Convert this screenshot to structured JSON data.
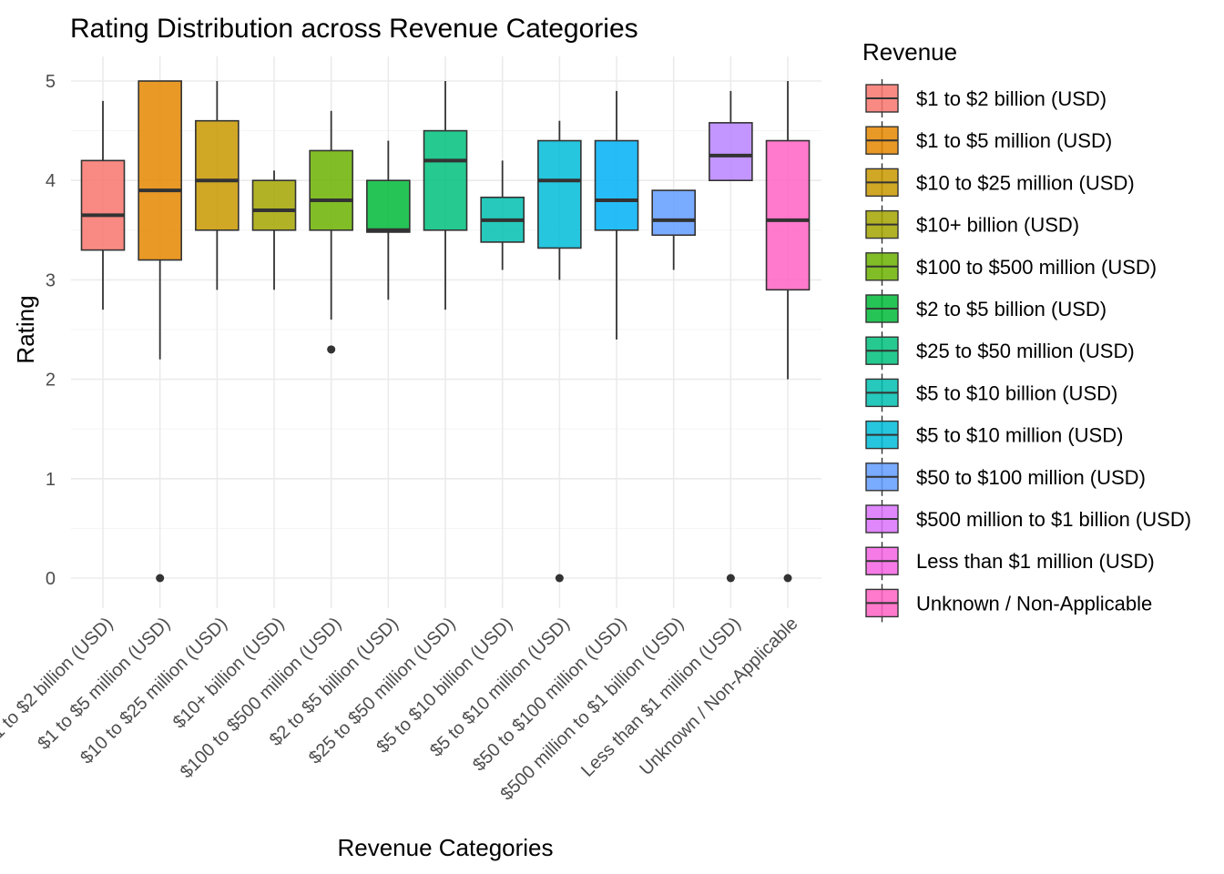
{
  "chart_data": {
    "type": "boxplot",
    "title": "Rating Distribution across Revenue Categories",
    "xlabel": "Revenue Categories",
    "ylabel": "Rating",
    "ylim": [
      -0.25,
      5.15
    ],
    "yticks": [
      0,
      1,
      2,
      3,
      4,
      5
    ],
    "grid": true,
    "legend": {
      "title": "Revenue",
      "placement": "right"
    },
    "categories": [
      "$1 to $2 billion (USD)",
      "$1 to $5 million (USD)",
      "$10 to $25 million (USD)",
      "$10+ billion (USD)",
      "$100 to $500 million (USD)",
      "$2 to $5 billion (USD)",
      "$25 to $50 million (USD)",
      "$5 to $10 billion (USD)",
      "$5 to $10 million (USD)",
      "$50 to $100 million (USD)",
      "$500 million to $1 billion (USD)",
      "Less than $1 million (USD)",
      "Unknown / Non-Applicable"
    ],
    "boxes": [
      {
        "min": 2.7,
        "q1": 3.3,
        "median": 3.65,
        "q3": 4.2,
        "max": 4.8,
        "outliers": [],
        "color": "#F8766D"
      },
      {
        "min": 2.2,
        "q1": 3.2,
        "median": 3.9,
        "q3": 5.0,
        "max": 5.0,
        "outliers": [
          0
        ],
        "color": "#E58700"
      },
      {
        "min": 2.9,
        "q1": 3.5,
        "median": 4.0,
        "q3": 4.6,
        "max": 5.0,
        "outliers": [],
        "color": "#C99800"
      },
      {
        "min": 2.9,
        "q1": 3.5,
        "median": 3.7,
        "q3": 4.0,
        "max": 4.1,
        "outliers": [],
        "color": "#A3A500"
      },
      {
        "min": 2.6,
        "q1": 3.5,
        "median": 3.8,
        "q3": 4.3,
        "max": 4.7,
        "outliers": [
          2.3
        ],
        "color": "#6BB100"
      },
      {
        "min": 2.8,
        "q1": 3.48,
        "median": 3.5,
        "q3": 4.0,
        "max": 4.4,
        "outliers": [],
        "color": "#00BA38"
      },
      {
        "min": 2.7,
        "q1": 3.5,
        "median": 4.2,
        "q3": 4.5,
        "max": 5.0,
        "outliers": [],
        "color": "#00BF7D"
      },
      {
        "min": 3.1,
        "q1": 3.38,
        "median": 3.6,
        "q3": 3.83,
        "max": 4.2,
        "outliers": [],
        "color": "#00C0AF"
      },
      {
        "min": 3.0,
        "q1": 3.32,
        "median": 4.0,
        "q3": 4.4,
        "max": 4.6,
        "outliers": [
          0
        ],
        "color": "#00BCD8"
      },
      {
        "min": 2.4,
        "q1": 3.5,
        "median": 3.8,
        "q3": 4.4,
        "max": 4.9,
        "outliers": [],
        "color": "#00B0F6"
      },
      {
        "min": 3.1,
        "q1": 3.45,
        "median": 3.6,
        "q3": 3.9,
        "max": 3.9,
        "outliers": [],
        "color": "#619CFF"
      },
      {
        "min": 4.0,
        "q1": 4.0,
        "median": 4.25,
        "q3": 4.58,
        "max": 4.9,
        "outliers": [
          0
        ],
        "color": "#B983FF"
      },
      {
        "min": 2.0,
        "q1": 2.9,
        "median": 3.6,
        "q3": 4.4,
        "max": 5.0,
        "outliers": [
          0
        ],
        "color": "#FF61C3"
      }
    ],
    "legend_colors": [
      "#F8766D",
      "#E58700",
      "#C99800",
      "#A3A500",
      "#6BB100",
      "#00BA38",
      "#00BF7D",
      "#00C0AF",
      "#00BCD8",
      "#619CFF",
      "#DB72FB",
      "#F564E3",
      "#FF61C3"
    ]
  }
}
